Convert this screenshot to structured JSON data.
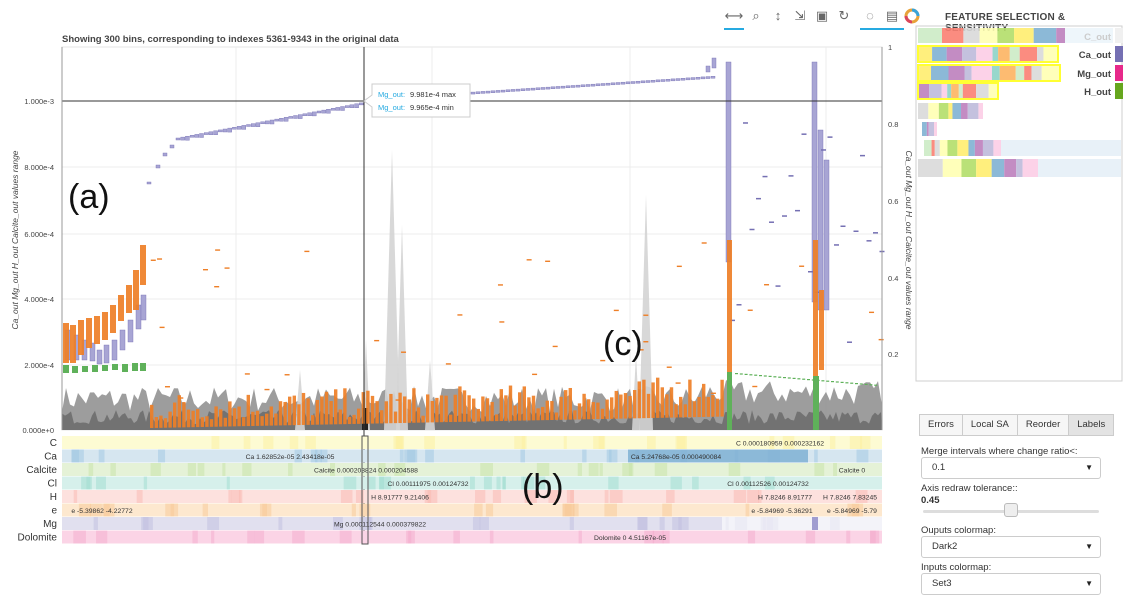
{
  "plot": {
    "title": "Showing 300 bins, corresponding to indexes 5361-9343 in the original data",
    "y_axis_label": "Ca_out Mg_out H_out Calcite_out values range",
    "y2_axis_label": "Ca_out Mg_out H_out Calcite_out values range",
    "y_ticks": [
      "1.000e-3",
      "8.000e-4",
      "6.000e-4",
      "4.000e-4",
      "2.000e-4",
      "0.000e+0"
    ],
    "y2_ticks": [
      "1",
      "0.8",
      "0.6",
      "0.4",
      "0.2"
    ],
    "annotation_a": "(a)",
    "annotation_b": "(b)",
    "annotation_c": "(c)"
  },
  "tooltip": {
    "row1_label": "Mg_out:",
    "row1_value": "9.981e-4 max",
    "row2_label": "Mg_out:",
    "row2_value": "9.965e-4 min"
  },
  "inputs_panel": {
    "rows": [
      "C",
      "Ca",
      "Calcite",
      "Cl",
      "H",
      "e",
      "Mg",
      "Dolomite"
    ],
    "labels": [
      {
        "row": 0,
        "text": "C 0.000180959 0.000232162"
      },
      {
        "row": 1,
        "text": "Ca 1.62852e-05 2.43418e-05"
      },
      {
        "row": 1,
        "text": "Ca 5.24768e-05 0.000490084"
      },
      {
        "row": 2,
        "text": "Calcite 0.000203824 0.000204588"
      },
      {
        "row": 2,
        "text": "Calcite 0"
      },
      {
        "row": 3,
        "text": "Cl 0.00111975 0.00124732"
      },
      {
        "row": 3,
        "text": "Cl 0.00112526 0.00124732"
      },
      {
        "row": 4,
        "text": "H 8.91777 9.21406"
      },
      {
        "row": 4,
        "text": "H 7.8246 8.91777"
      },
      {
        "row": 4,
        "text": "H 7.8246 7.83245"
      },
      {
        "row": 5,
        "text": "e -5.39862 -4.22772"
      },
      {
        "row": 5,
        "text": "e -5.84969 -5.36291"
      },
      {
        "row": 5,
        "text": "e -5.84969 -5.79"
      },
      {
        "row": 6,
        "text": "Mg 0.000112544 0.000379822"
      },
      {
        "row": 7,
        "text": "Dolomite 0 4.51167e-05"
      }
    ]
  },
  "sidebar": {
    "title": "FEATURE SELECTION & SENSITIVITY",
    "outputs": [
      "C_out",
      "Ca_out",
      "Mg_out",
      "H_out"
    ],
    "tabs": [
      "Errors",
      "Local SA",
      "Reorder",
      "Labels"
    ],
    "merge_label": "Merge intervals where change ratio<:",
    "merge_value": "0.1",
    "tolerance_label": "Axis redraw tolerance::",
    "tolerance_value": "0.45",
    "outputs_colormap_label": "Ouputs colormap:",
    "outputs_colormap_value": "Dark2",
    "inputs_colormap_label": "Inputs colormap:",
    "inputs_colormap_value": "Set3"
  },
  "colors": {
    "purple": "#7570b3",
    "purple_light": "#a8a5d4",
    "orange": "#ee7f27",
    "green": "#5fb15a",
    "gray": "#8f8f8f",
    "accent": "#26aae1",
    "highlight": "#ffff33"
  },
  "icons": [
    "pan-icon",
    "box-zoom-icon",
    "wheel-zoom-icon",
    "tap-icon",
    "save-icon",
    "reset-icon",
    "hover-icon",
    "crosshair-icon",
    "bokeh-logo-icon"
  ]
}
